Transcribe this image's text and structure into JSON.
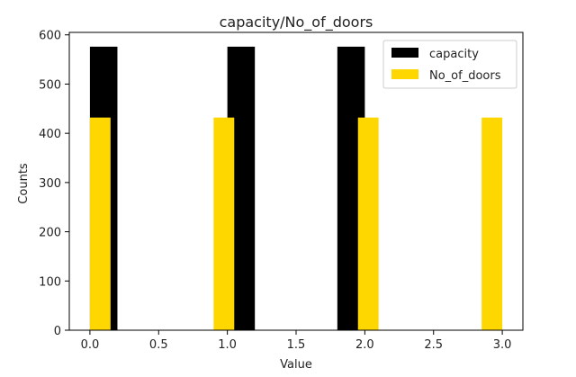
{
  "chart_data": {
    "type": "bar",
    "title": "capacity/No_of_doors",
    "xlabel": "Value",
    "ylabel": "Counts",
    "xlim": [
      -0.15,
      3.15
    ],
    "ylim": [
      0,
      605
    ],
    "xticks": [
      "0.0",
      "0.5",
      "1.0",
      "1.5",
      "2.0",
      "2.5",
      "3.0"
    ],
    "xtick_values": [
      0,
      0.5,
      1,
      1.5,
      2,
      2.5,
      3
    ],
    "yticks": [
      "0",
      "100",
      "200",
      "300",
      "400",
      "500",
      "600"
    ],
    "ytick_values": [
      0,
      100,
      200,
      300,
      400,
      500,
      600
    ],
    "grid": false,
    "legend_position": "top-right",
    "series": [
      {
        "name": "capacity",
        "color": "#000000",
        "bars": [
          {
            "x0": 0.0,
            "x1": 0.2,
            "value": 576
          },
          {
            "x0": 1.0,
            "x1": 1.2,
            "value": 576
          },
          {
            "x0": 1.8,
            "x1": 2.0,
            "value": 576
          }
        ]
      },
      {
        "name": "No_of_doors",
        "color": "#FFD700",
        "bars": [
          {
            "x0": 0.0,
            "x1": 0.15,
            "value": 432
          },
          {
            "x0": 0.9,
            "x1": 1.05,
            "value": 432
          },
          {
            "x0": 1.95,
            "x1": 2.1,
            "value": 432
          },
          {
            "x0": 2.85,
            "x1": 3.0,
            "value": 432
          }
        ]
      }
    ]
  }
}
